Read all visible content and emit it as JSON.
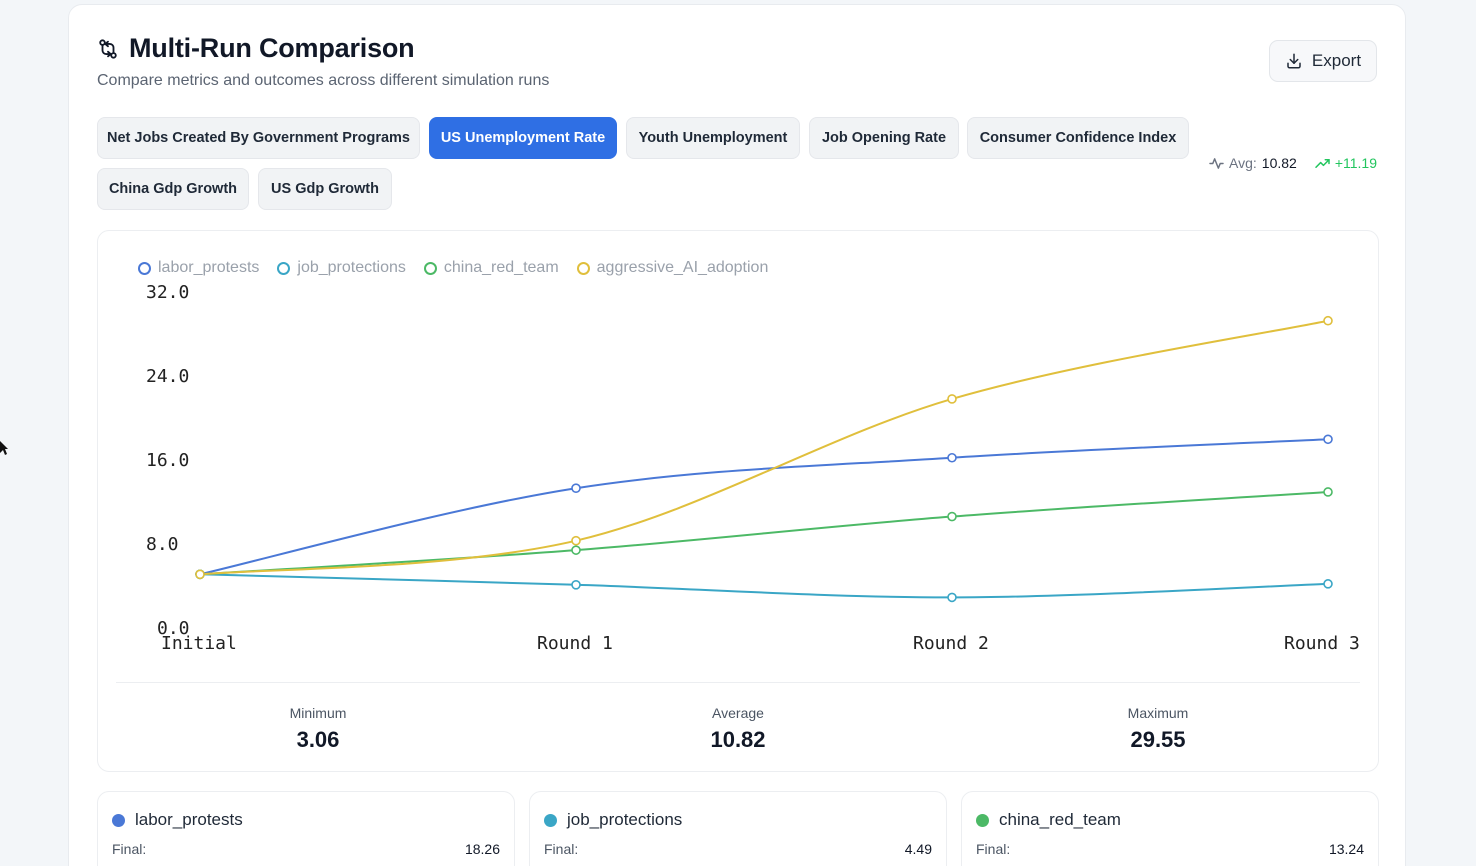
{
  "header": {
    "title": "Multi-Run Comparison",
    "subtitle": "Compare metrics and outcomes across different simulation runs",
    "export_label": "Export"
  },
  "tabs": [
    {
      "label": "Net Jobs Created By Government Programs",
      "active": false
    },
    {
      "label": "US Unemployment Rate",
      "active": true
    },
    {
      "label": "Youth Unemployment",
      "active": false
    },
    {
      "label": "Job Opening Rate",
      "active": false
    },
    {
      "label": "Consumer Confidence Index",
      "active": false
    },
    {
      "label": "China Gdp Growth",
      "active": false
    },
    {
      "label": "US Gdp Growth",
      "active": false
    }
  ],
  "metric_summary": {
    "avg_label": "Avg:",
    "avg_value": "10.82",
    "delta": "+11.19"
  },
  "colors": {
    "accent": "#2f6fe4",
    "labor_protests": "#4a78d6",
    "job_protections": "#3aa6c6",
    "china_red_team": "#4cb966",
    "aggressive_AI_adoption": "#e0bf3c",
    "positive": "#22c55e"
  },
  "chart_data": {
    "type": "line",
    "x": [
      "Initial",
      "Round 1",
      "Round 2",
      "Round 3"
    ],
    "yticks": [
      "32.0",
      "24.0",
      "16.0",
      "8.0",
      "0.0"
    ],
    "ylim": [
      0,
      32
    ],
    "legend_position": "top-left",
    "series": [
      {
        "name": "labor_protests",
        "values": [
          5.4,
          13.6,
          16.5,
          18.26
        ]
      },
      {
        "name": "job_protections",
        "values": [
          5.4,
          4.4,
          3.2,
          4.49
        ]
      },
      {
        "name": "china_red_team",
        "values": [
          5.4,
          7.7,
          10.9,
          13.24
        ]
      },
      {
        "name": "aggressive_AI_adoption",
        "values": [
          5.4,
          8.6,
          22.1,
          29.55
        ]
      }
    ]
  },
  "chart_stats": [
    {
      "label": "Minimum",
      "value": "3.06"
    },
    {
      "label": "Average",
      "value": "10.82"
    },
    {
      "label": "Maximum",
      "value": "29.55"
    }
  ],
  "runs": [
    {
      "name": "labor_protests",
      "final_label": "Final:",
      "final": "18.26"
    },
    {
      "name": "job_protections",
      "final_label": "Final:",
      "final": "4.49"
    },
    {
      "name": "china_red_team",
      "final_label": "Final:",
      "final": "13.24"
    }
  ]
}
